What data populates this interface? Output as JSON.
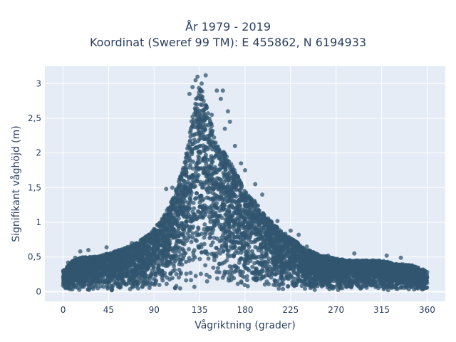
{
  "chart_data": {
    "type": "scatter",
    "title": "År 1979 - 2019",
    "subtitle": "Koordinat (Sweref 99 TM): E 455862, N 6194933",
    "xlabel": "Vågriktning (grader)",
    "ylabel": "Signifikant våghöjd (m)",
    "xlim": [
      -18,
      378
    ],
    "ylim": [
      -0.14,
      3.25
    ],
    "x_ticks": [
      0,
      45,
      90,
      135,
      180,
      225,
      270,
      315,
      360
    ],
    "x_tick_labels": [
      "0",
      "45",
      "90",
      "135",
      "180",
      "225",
      "270",
      "315",
      "360"
    ],
    "y_ticks": [
      0,
      0.5,
      1,
      1.5,
      2,
      2.5,
      3
    ],
    "y_tick_labels": [
      "0",
      "0,5",
      "1",
      "1,5",
      "2",
      "2,5",
      "3"
    ],
    "grid": true,
    "marker_color": "#31566f",
    "plot_background": "#e5ecf6",
    "envelope": {
      "x": [
        0,
        10,
        20,
        30,
        45,
        60,
        75,
        90,
        100,
        110,
        120,
        125,
        130,
        135,
        140,
        145,
        150,
        160,
        170,
        180,
        190,
        200,
        210,
        225,
        240,
        255,
        270,
        285,
        300,
        315,
        330,
        345,
        360
      ],
      "upper": [
        0.3,
        0.45,
        0.5,
        0.5,
        0.55,
        0.62,
        0.72,
        0.9,
        1.1,
        1.4,
        1.85,
        2.3,
        2.7,
        3.0,
        2.8,
        2.5,
        2.25,
        2.0,
        1.75,
        1.45,
        1.3,
        1.1,
        0.95,
        0.78,
        0.62,
        0.52,
        0.48,
        0.45,
        0.45,
        0.45,
        0.4,
        0.38,
        0.3
      ]
    },
    "outliers": [
      {
        "x": 125,
        "y": 2.85
      },
      {
        "x": 128,
        "y": 2.95
      },
      {
        "x": 131,
        "y": 3.05
      },
      {
        "x": 133,
        "y": 3.1
      },
      {
        "x": 137,
        "y": 3.0
      },
      {
        "x": 141,
        "y": 3.12
      },
      {
        "x": 139,
        "y": 2.75
      },
      {
        "x": 152,
        "y": 2.9
      },
      {
        "x": 158,
        "y": 2.9
      },
      {
        "x": 156,
        "y": 2.78
      },
      {
        "x": 163,
        "y": 2.6
      },
      {
        "x": 165,
        "y": 2.45
      },
      {
        "x": 147,
        "y": 2.55
      },
      {
        "x": 160,
        "y": 2.35
      },
      {
        "x": 170,
        "y": 2.1
      },
      {
        "x": 176,
        "y": 1.85
      },
      {
        "x": 180,
        "y": 1.75
      },
      {
        "x": 190,
        "y": 1.55
      },
      {
        "x": 197,
        "y": 1.4
      },
      {
        "x": 212,
        "y": 1.02
      },
      {
        "x": 225,
        "y": 0.88
      },
      {
        "x": 233,
        "y": 0.82
      },
      {
        "x": 241,
        "y": 0.65
      },
      {
        "x": 262,
        "y": 0.52
      },
      {
        "x": 288,
        "y": 0.55
      },
      {
        "x": 320,
        "y": 0.52
      },
      {
        "x": 334,
        "y": 0.49
      },
      {
        "x": 5,
        "y": 0.42
      },
      {
        "x": 12,
        "y": 0.49
      },
      {
        "x": 17,
        "y": 0.58
      },
      {
        "x": 25,
        "y": 0.6
      },
      {
        "x": 30,
        "y": 0.5
      },
      {
        "x": 43,
        "y": 0.64
      },
      {
        "x": 55,
        "y": 0.6
      },
      {
        "x": 68,
        "y": 0.7
      },
      {
        "x": 85,
        "y": 0.75
      },
      {
        "x": 98,
        "y": 1.05
      },
      {
        "x": 102,
        "y": 1.48
      },
      {
        "x": 108,
        "y": 1.5
      },
      {
        "x": 115,
        "y": 1.62
      }
    ]
  }
}
